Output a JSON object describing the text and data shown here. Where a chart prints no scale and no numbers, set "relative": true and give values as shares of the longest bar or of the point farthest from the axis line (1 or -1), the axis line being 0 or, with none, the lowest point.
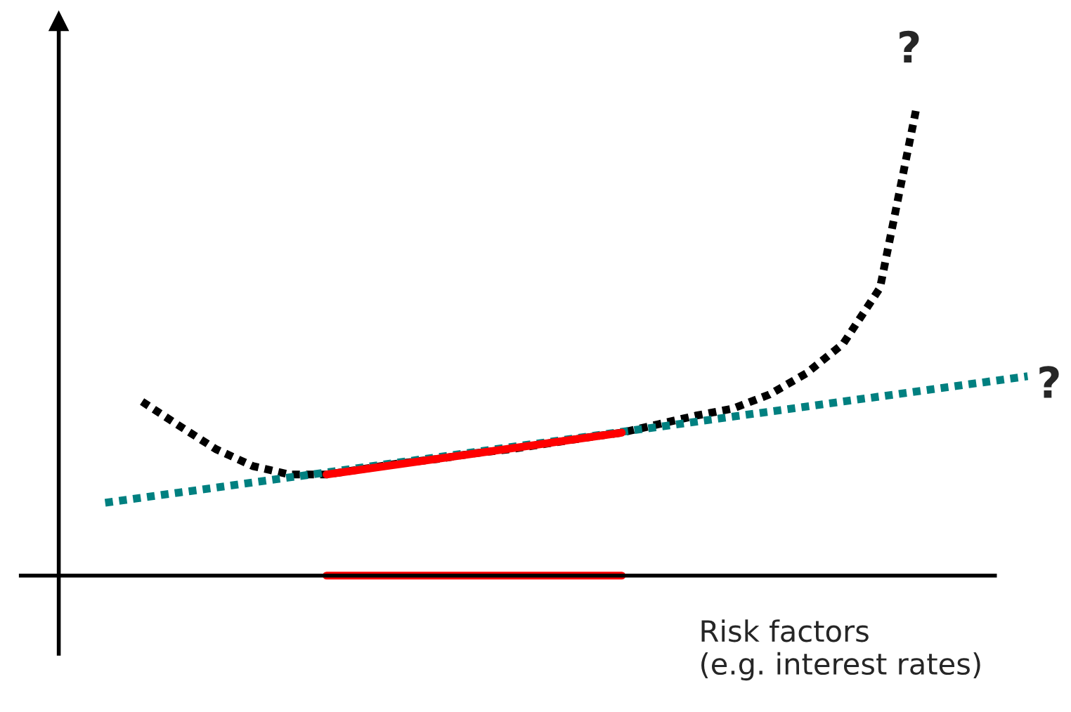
{
  "chart_data": {
    "type": "line",
    "relative": true,
    "xlabel": "Risk factors\n(e.g. interest rates)",
    "legend": false,
    "marker": "none",
    "categories": [
      null,
      null,
      null,
      null,
      null,
      null,
      null,
      null,
      null,
      null,
      null,
      null,
      null,
      null,
      null,
      null,
      null,
      null,
      null,
      null,
      null,
      null,
      null,
      null,
      null,
      null
    ],
    "series": [
      {
        "color": "#000000",
        "line_style": "dotted",
        "values": [
          null,
          0.37,
          0.319,
          0.269,
          0.233,
          0.215,
          0.215,
          0.227,
          0.239,
          0.248,
          0.26,
          0.269,
          0.281,
          0.293,
          0.304,
          0.322,
          0.34,
          0.355,
          0.385,
          0.43,
          0.493,
          0.612,
          1.0,
          null,
          null,
          null
        ]
      },
      {
        "color": "#008080",
        "line_style": "dotted",
        "values": [
          0.155,
          null,
          null,
          null,
          null,
          null,
          null,
          null,
          null,
          null,
          null,
          null,
          null,
          null,
          null,
          null,
          null,
          null,
          null,
          null,
          null,
          null,
          null,
          null,
          null,
          0.424
        ]
      },
      {
        "color": "#ff0000",
        "line_style": "solid",
        "values": [
          null,
          null,
          null,
          null,
          null,
          null,
          0.215,
          null,
          null,
          null,
          null,
          null,
          null,
          null,
          0.304,
          null,
          null,
          null,
          null,
          null,
          null,
          null,
          null,
          null,
          null,
          null
        ]
      },
      {
        "color": "#ff0000",
        "line_style": "solid",
        "values": [
          null,
          null,
          null,
          null,
          null,
          null,
          0,
          null,
          null,
          null,
          null,
          null,
          null,
          null,
          0,
          null,
          null,
          null,
          null,
          null,
          null,
          null,
          null,
          null,
          null,
          null
        ]
      }
    ],
    "annotations": [
      "?",
      "?"
    ]
  }
}
